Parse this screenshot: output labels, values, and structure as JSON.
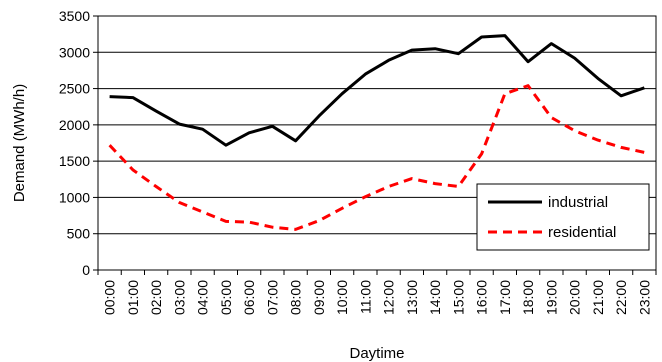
{
  "chart_data": {
    "type": "line",
    "xlabel": "Daytime",
    "ylabel": "Demand (MWh/h)",
    "ylim": [
      0,
      3500
    ],
    "yticks": [
      "0",
      "500",
      "1000",
      "1500",
      "2000",
      "2500",
      "3000",
      "3500"
    ],
    "categories": [
      "00:00",
      "01:00",
      "02:00",
      "03:00",
      "04:00",
      "05:00",
      "06:00",
      "07:00",
      "08:00",
      "09:00",
      "10:00",
      "11:00",
      "12:00",
      "13:00",
      "14:00",
      "15:00",
      "16:00",
      "17:00",
      "18:00",
      "19:00",
      "20:00",
      "21:00",
      "22:00",
      "23:00"
    ],
    "grid": true,
    "legend_position": "lower-right",
    "series": [
      {
        "name": "industrial",
        "color": "#000000",
        "style": "solid",
        "values": [
          2390,
          2375,
          2190,
          2010,
          1940,
          1720,
          1890,
          1980,
          1780,
          2120,
          2430,
          2700,
          2890,
          3030,
          3050,
          2980,
          3210,
          3230,
          2870,
          3120,
          2920,
          2640,
          2400,
          2510
        ]
      },
      {
        "name": "residential",
        "color": "#ff0000",
        "style": "dashed",
        "values": [
          1720,
          1380,
          1150,
          930,
          800,
          670,
          660,
          590,
          560,
          680,
          850,
          1010,
          1150,
          1260,
          1190,
          1150,
          1600,
          2430,
          2540,
          2100,
          1920,
          1790,
          1690,
          1620
        ]
      }
    ]
  }
}
